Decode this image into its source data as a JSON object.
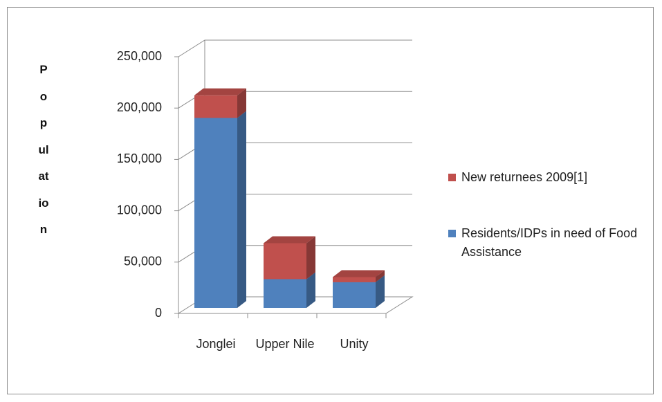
{
  "chart_data": {
    "type": "bar",
    "stacked": true,
    "y_label": "Population",
    "categories": [
      "Jonglei",
      "Upper Nile",
      "Unity"
    ],
    "series": [
      {
        "name": "Residents/IDPs in need of Food Assistance",
        "color": "#4f81bd",
        "values": [
          185000,
          28000,
          25000
        ]
      },
      {
        "name": "New returnees  2009[1]",
        "color": "#c0504d",
        "values": [
          22000,
          35000,
          5000
        ]
      }
    ],
    "ylim": [
      0,
      250000
    ],
    "yticks": [
      0,
      {
        "value": 50000,
        "label": "50,000"
      },
      {
        "value": 100000,
        "label": "100,000"
      },
      {
        "value": 150000,
        "label": "150,000"
      },
      {
        "value": 200000,
        "label": "200,000"
      },
      {
        "value": 250000,
        "label": "250,000"
      }
    ],
    "grid": true
  }
}
